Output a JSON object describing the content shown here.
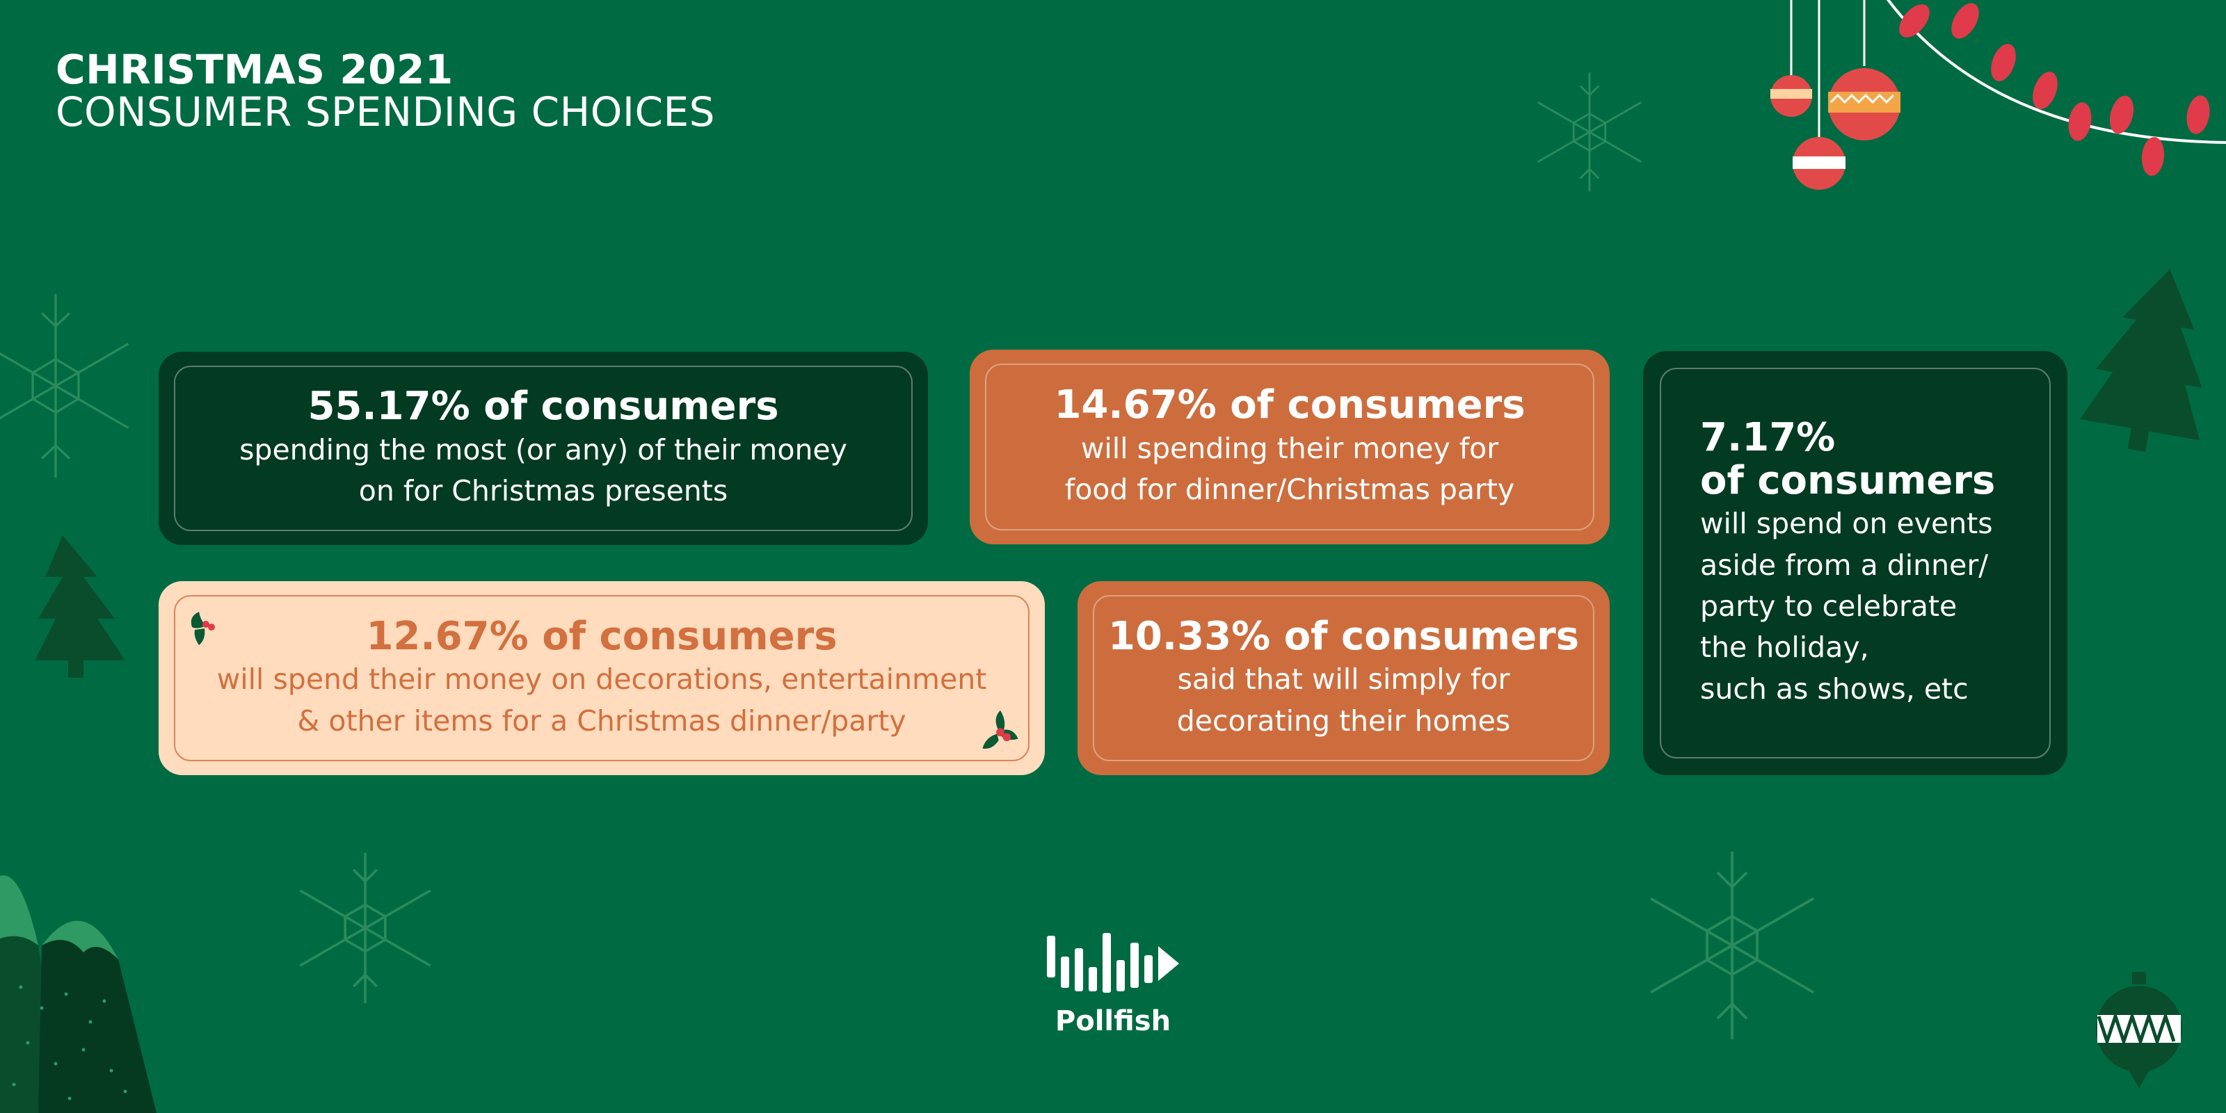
{
  "header": {
    "title": "CHRISTMAS 2021",
    "subtitle": "CONSUMER SPENDING CHOICES"
  },
  "cards": [
    {
      "stat": "55.17% of consumers",
      "line1": "spending the most (or any) of their money",
      "line2": "on for Christmas presents"
    },
    {
      "stat": "14.67% of consumers",
      "line1": "will spending their money for",
      "line2": "food for dinner/Christmas party"
    },
    {
      "stat_line1": "7.17%",
      "stat_line2": "of consumers",
      "lines": [
        "will spend on events",
        "aside from a dinner/",
        "party to celebrate",
        "the holiday,",
        "such as shows, etc"
      ]
    },
    {
      "stat": "12.67% of consumers",
      "line1": "will spend their money on decorations, entertainment",
      "line2": "& other items for a Christmas dinner/party"
    },
    {
      "stat": "10.33% of consumers",
      "line1": "said that will simply for",
      "line2": "decorating their homes"
    }
  ],
  "brand": {
    "name": "Pollfish"
  },
  "colors": {
    "background": "#006b42",
    "dark_card": "#033a22",
    "orange_card": "#cd6d3e",
    "cream_card": "#ffdcbe",
    "cream_text": "#d2703f"
  }
}
